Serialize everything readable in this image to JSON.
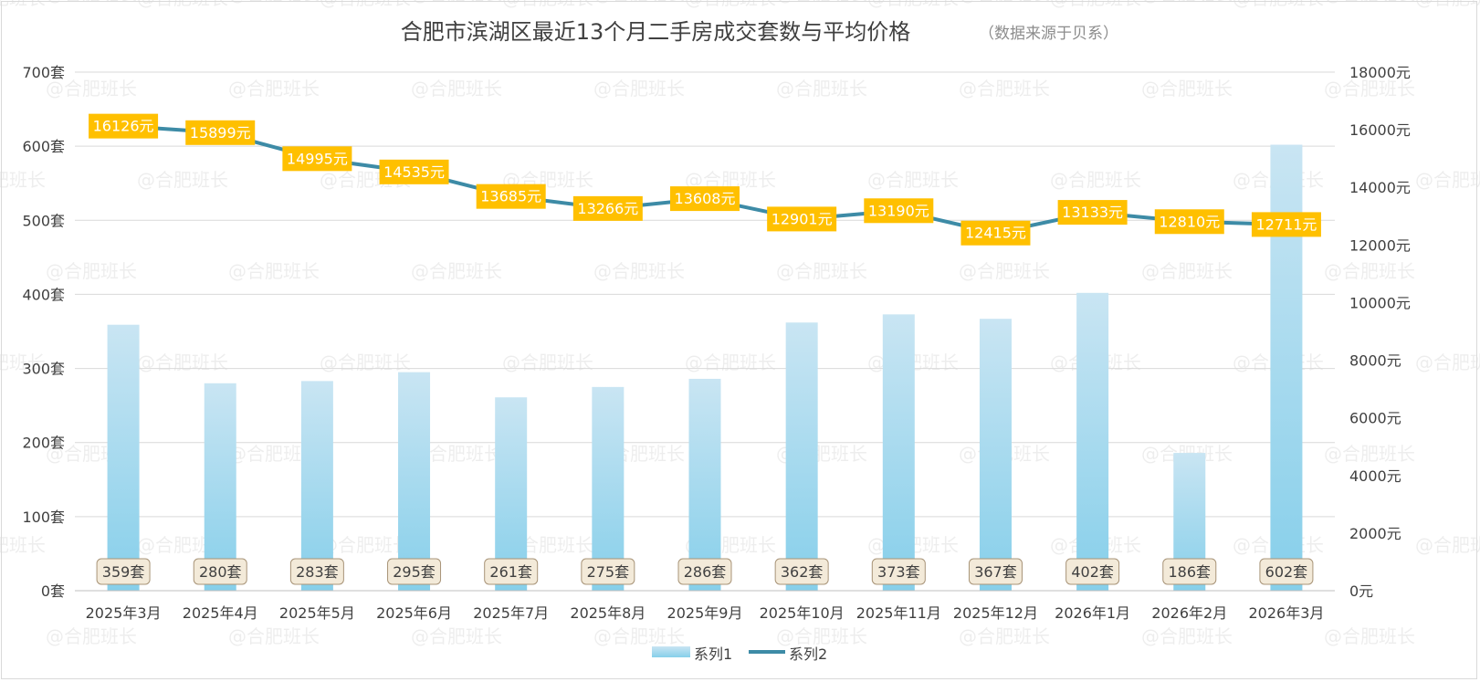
{
  "chart_data": {
    "type": "bar+line",
    "title": "合肥市滨湖区最近13个月二手房成交套数与平均价格",
    "subtitle": "（数据来源于贝系）",
    "categories": [
      "2025年3月",
      "2025年4月",
      "2025年5月",
      "2025年6月",
      "2025年7月",
      "2025年8月",
      "2025年9月",
      "2025年10月",
      "2025年11月",
      "2025年12月",
      "2026年1月",
      "2026年2月",
      "2026年3月"
    ],
    "series": [
      {
        "name": "系列1",
        "kind": "bar",
        "axis": "left",
        "unit": "套",
        "values": [
          359,
          280,
          283,
          295,
          261,
          275,
          286,
          362,
          373,
          367,
          402,
          186,
          602
        ]
      },
      {
        "name": "系列2",
        "kind": "line",
        "axis": "right",
        "unit": "元",
        "values": [
          16126,
          15899,
          14995,
          14535,
          13685,
          13266,
          13608,
          12901,
          13190,
          12415,
          13133,
          12810,
          12711
        ]
      }
    ],
    "y_left": {
      "min": 0,
      "max": 700,
      "step": 100,
      "ticks": [
        "0套",
        "100套",
        "200套",
        "300套",
        "400套",
        "500套",
        "600套",
        "700套"
      ]
    },
    "y_right": {
      "min": 0,
      "max": 18000,
      "step": 2000,
      "ticks": [
        "0元",
        "2000元",
        "4000元",
        "6000元",
        "8000元",
        "10000元",
        "12000元",
        "14000元",
        "16000元",
        "18000元"
      ]
    },
    "bar_labels": [
      "359套",
      "280套",
      "283套",
      "295套",
      "261套",
      "275套",
      "286套",
      "362套",
      "373套",
      "367套",
      "402套",
      "186套",
      "602套"
    ],
    "line_labels": [
      "16126元",
      "15899元",
      "14995元",
      "14535元",
      "13685元",
      "13266元",
      "13608元",
      "12901元",
      "13190元",
      "12415元",
      "13133元",
      "12810元",
      "12711元"
    ],
    "legend": {
      "position": "bottom",
      "items": [
        "系列1",
        "系列2"
      ]
    },
    "watermark": "@合肥班长",
    "grid": true,
    "colors": {
      "bar_top": "#c9e5f3",
      "bar_bottom": "#86cfea",
      "line": "#3d8ba6",
      "label_box": "#ffc000",
      "bar_label_box": "#f3ead9",
      "bar_label_border": "#a89478",
      "grid": "#d9d9d9",
      "text": "#404040"
    }
  }
}
